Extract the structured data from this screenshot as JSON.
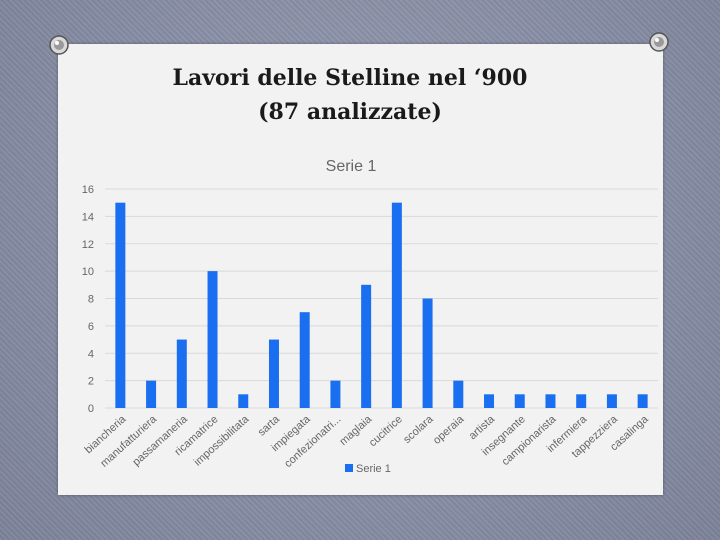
{
  "slide": {
    "title_line1": "Lavori delle Stelline nel ‘900",
    "title_line2": "(87 analizzate)"
  },
  "chart_data": {
    "type": "bar",
    "title": "Serie 1",
    "xlabel": "",
    "ylabel": "",
    "ylim": [
      0,
      16
    ],
    "yticks": [
      0,
      2,
      4,
      6,
      8,
      10,
      12,
      14,
      16
    ],
    "grid": true,
    "legend_position": "bottom",
    "bar_color": "#1a6ff0",
    "categories": [
      "biancheria",
      "manufatturiera",
      "passamaneria",
      "ricamatrice",
      "impossibilitata",
      "sarta",
      "impiegata",
      "confezionatri...",
      "maglaia",
      "cucitrice",
      "scolara",
      "operaia",
      "artista",
      "insegnante",
      "campionarista",
      "infermiera",
      "tappezziera",
      "casalinga"
    ],
    "series": [
      {
        "name": "Serie 1",
        "values": [
          15,
          2,
          5,
          10,
          1,
          5,
          7,
          2,
          9,
          15,
          8,
          2,
          1,
          1,
          1,
          1,
          1,
          1
        ]
      }
    ]
  }
}
